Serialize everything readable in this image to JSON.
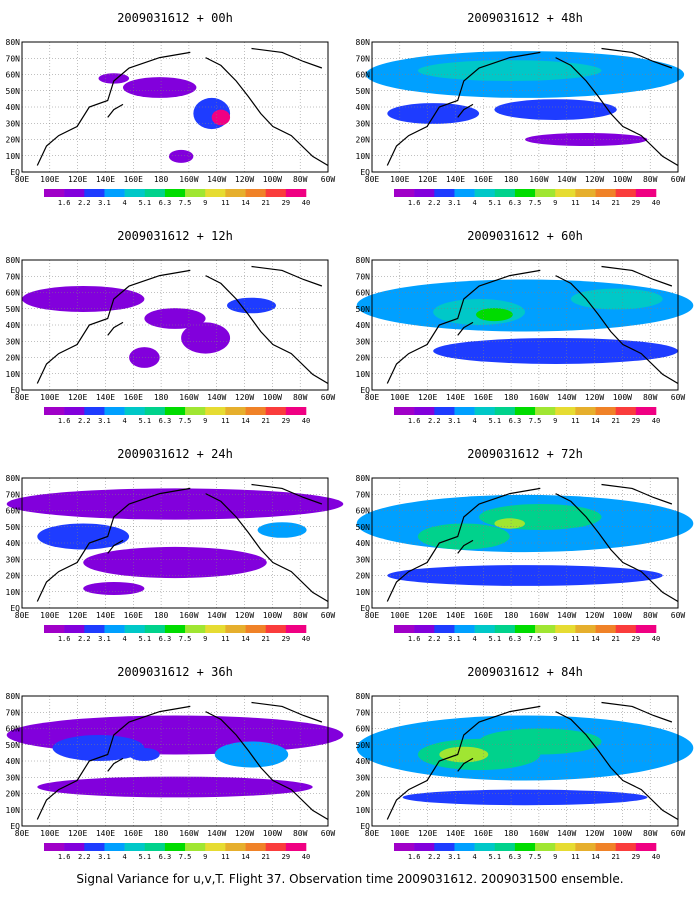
{
  "page_caption": "Signal Variance for u,v,T. Flight 37. Observation time 2009031612. 2009031500 ensemble.",
  "panels": [
    {
      "title": "2009031612 + 00h"
    },
    {
      "title": "2009031612 + 48h"
    },
    {
      "title": "2009031612 + 12h"
    },
    {
      "title": "2009031612 + 60h"
    },
    {
      "title": "2009031612 + 24h"
    },
    {
      "title": "2009031612 + 72h"
    },
    {
      "title": "2009031612 + 36h"
    },
    {
      "title": "2009031612 + 84h"
    }
  ],
  "map_axes": {
    "lon_labels": [
      "80E",
      "100E",
      "120E",
      "140E",
      "160E",
      "180",
      "160W",
      "140W",
      "120W",
      "100W",
      "80W",
      "60W"
    ],
    "lat_labels": [
      "EQ",
      "10N",
      "20N",
      "30N",
      "40N",
      "50N",
      "60N",
      "70N",
      "80N"
    ]
  },
  "colorbar": {
    "labels": [
      "1.6",
      "2.2",
      "3.1",
      "4",
      "5.1",
      "6.3",
      "7.5",
      "9",
      "11",
      "14",
      "21",
      "29",
      "40"
    ],
    "colors": [
      "#a000c8",
      "#8200dc",
      "#1e3cff",
      "#00a0ff",
      "#00c8c8",
      "#00d28c",
      "#00dc00",
      "#a0e632",
      "#e6dc32",
      "#e6af2d",
      "#f08228",
      "#fa3c3c",
      "#f00082"
    ]
  }
}
